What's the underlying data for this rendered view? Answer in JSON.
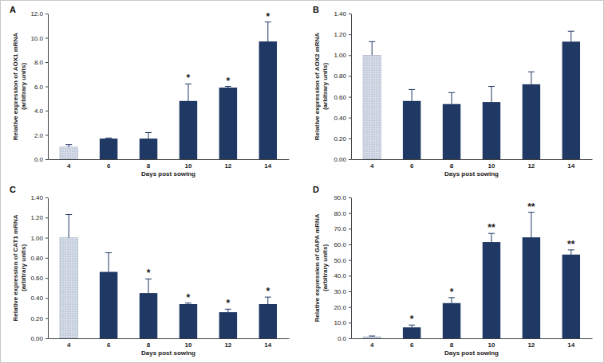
{
  "chart_data": [
    {
      "type": "bar",
      "title": "A",
      "x_label": "Days post sowing",
      "y_label": [
        "Relative expression of AOX1 mRNA",
        "(arbitrary units)"
      ],
      "categories": [
        "4",
        "6",
        "8",
        "10",
        "12",
        "14"
      ],
      "values": [
        1.0,
        1.7,
        1.7,
        4.8,
        5.9,
        9.7
      ],
      "errors": [
        0.2,
        0.05,
        0.5,
        1.4,
        0.1,
        1.6
      ],
      "annotations": [
        null,
        null,
        null,
        "*",
        "*",
        "*"
      ],
      "colors": [
        "#d6dde9",
        "#203864",
        "#203864",
        "#203864",
        "#203864",
        "#203864"
      ],
      "ylim": [
        0,
        12
      ],
      "yticks": [
        {
          "value": 0,
          "label": "0.0"
        },
        {
          "value": 2,
          "label": "2.0"
        },
        {
          "value": 4,
          "label": "4.0"
        },
        {
          "value": 6,
          "label": "6.0"
        },
        {
          "value": 8,
          "label": "8.0"
        },
        {
          "value": 10,
          "label": "10.0"
        },
        {
          "value": 12,
          "label": "12.0"
        }
      ]
    },
    {
      "type": "bar",
      "title": "B",
      "x_label": "Days post sowing",
      "y_label": [
        "Relative expression of AOX2 mRNA",
        "(arbitrary units)"
      ],
      "categories": [
        "4",
        "6",
        "8",
        "10",
        "12",
        "14"
      ],
      "values": [
        1.0,
        0.56,
        0.53,
        0.55,
        0.72,
        1.13
      ],
      "errors": [
        0.13,
        0.11,
        0.11,
        0.15,
        0.12,
        0.1
      ],
      "annotations": [
        null,
        null,
        null,
        null,
        null,
        null
      ],
      "colors": [
        "#d6dde9",
        "#203864",
        "#203864",
        "#203864",
        "#203864",
        "#203864"
      ],
      "ylim": [
        0,
        1.4
      ],
      "yticks": [
        {
          "value": 0,
          "label": "0.00"
        },
        {
          "value": 0.2,
          "label": "0.20"
        },
        {
          "value": 0.4,
          "label": "0.40"
        },
        {
          "value": 0.6,
          "label": "0.60"
        },
        {
          "value": 0.8,
          "label": "0.80"
        },
        {
          "value": 1.0,
          "label": "1.00"
        },
        {
          "value": 1.2,
          "label": "1.20"
        },
        {
          "value": 1.4,
          "label": "1.40"
        }
      ]
    },
    {
      "type": "bar",
      "title": "C",
      "x_label": "Days post sowing",
      "y_label": [
        "Relative expression of CAT1 mRNA",
        "(arbitrary units)"
      ],
      "categories": [
        "4",
        "6",
        "8",
        "10",
        "12",
        "14"
      ],
      "values": [
        1.0,
        0.66,
        0.45,
        0.34,
        0.26,
        0.34
      ],
      "errors": [
        0.23,
        0.19,
        0.14,
        0.01,
        0.03,
        0.07
      ],
      "annotations": [
        null,
        null,
        "*",
        "*",
        "*",
        "*"
      ],
      "colors": [
        "#d6dde9",
        "#203864",
        "#203864",
        "#203864",
        "#203864",
        "#203864"
      ],
      "ylim": [
        0,
        1.4
      ],
      "yticks": [
        {
          "value": 0,
          "label": "0.00"
        },
        {
          "value": 0.2,
          "label": "0.20"
        },
        {
          "value": 0.4,
          "label": "0.40"
        },
        {
          "value": 0.6,
          "label": "0.60"
        },
        {
          "value": 0.8,
          "label": "0.80"
        },
        {
          "value": 1.0,
          "label": "1.00"
        },
        {
          "value": 1.2,
          "label": "1.20"
        },
        {
          "value": 1.4,
          "label": "1.40"
        }
      ]
    },
    {
      "type": "bar",
      "title": "D",
      "x_label": "Days post sowing",
      "y_label": [
        "Relative expression of GAPA mRNA",
        "(arbitrary units)"
      ],
      "categories": [
        "4",
        "6",
        "8",
        "10",
        "12",
        "14"
      ],
      "values": [
        1.0,
        7.0,
        22.5,
        61.5,
        64.5,
        53.5
      ],
      "errors": [
        0.5,
        1.5,
        3.5,
        5.5,
        16,
        3
      ],
      "annotations": [
        null,
        "*",
        "*",
        "**",
        "**",
        "**"
      ],
      "colors": [
        "#d6dde9",
        "#203864",
        "#203864",
        "#203864",
        "#203864",
        "#203864"
      ],
      "ylim": [
        0,
        90
      ],
      "yticks": [
        {
          "value": 0,
          "label": "0.0"
        },
        {
          "value": 10,
          "label": "10.0"
        },
        {
          "value": 20,
          "label": "20.0"
        },
        {
          "value": 30,
          "label": "30.0"
        },
        {
          "value": 40,
          "label": "40.0"
        },
        {
          "value": 50,
          "label": "50.0"
        },
        {
          "value": 60,
          "label": "60.0"
        },
        {
          "value": 70,
          "label": "70.0"
        },
        {
          "value": 80,
          "label": "80.0"
        },
        {
          "value": 90,
          "label": "90.0"
        }
      ]
    }
  ]
}
